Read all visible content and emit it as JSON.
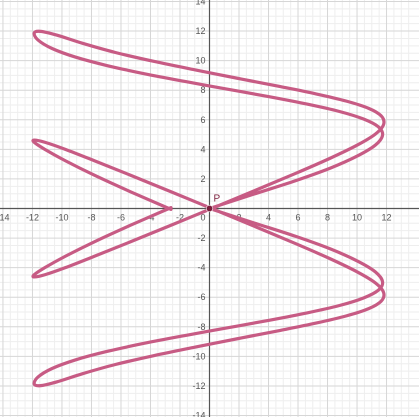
{
  "chart_data": {
    "type": "line",
    "title": "",
    "xlabel": "",
    "ylabel": "",
    "xlim": [
      -14.2,
      14.2
    ],
    "ylim": [
      -14.1,
      14.1
    ],
    "grid": true,
    "x_ticks": [
      "-14",
      "-12",
      "-10",
      "-8",
      "-6",
      "-4",
      "-2",
      "2",
      "4",
      "6",
      "8",
      "10",
      "12"
    ],
    "y_ticks": [
      "14",
      "12",
      "10",
      "8",
      "6",
      "4",
      "2",
      "-2",
      "-4",
      "-6",
      "-8",
      "-10",
      "-12",
      "-14"
    ],
    "origin_label": "0",
    "series": [
      {
        "color": "#c75b84",
        "points": [
          [
            0.0,
            0.0
          ],
          [
            3.0,
            0.97
          ],
          [
            5.8,
            1.87
          ],
          [
            8.21,
            2.74
          ],
          [
            10.06,
            3.57
          ],
          [
            11.26,
            4.3
          ],
          [
            11.73,
            4.96
          ],
          [
            11.45,
            5.52
          ],
          [
            10.44,
            6.05
          ],
          [
            8.81,
            6.56
          ],
          [
            6.61,
            7.06
          ],
          [
            4.04,
            7.56
          ],
          [
            1.22,
            8.07
          ],
          [
            -1.66,
            8.59
          ],
          [
            -4.44,
            9.12
          ],
          [
            -6.96,
            9.67
          ],
          [
            -9.09,
            10.24
          ],
          [
            -10.67,
            10.82
          ],
          [
            -11.63,
            11.4
          ],
          [
            -11.88,
            11.87
          ],
          [
            -11.45,
            11.98
          ],
          [
            -10.33,
            11.72
          ],
          [
            -8.6,
            11.17
          ],
          [
            -6.38,
            10.55
          ],
          [
            -3.78,
            9.95
          ],
          [
            -0.96,
            9.37
          ],
          [
            1.93,
            8.8
          ],
          [
            4.71,
            8.26
          ],
          [
            7.22,
            7.75
          ],
          [
            9.28,
            7.26
          ],
          [
            10.79,
            6.77
          ],
          [
            11.65,
            6.25
          ],
          [
            11.8,
            5.68
          ],
          [
            11.24,
            5.03
          ],
          [
            10.0,
            4.28
          ],
          [
            8.16,
            3.39
          ],
          [
            5.83,
            2.37
          ],
          [
            3.16,
            1.25
          ],
          [
            0.29,
            0.06
          ],
          [
            -2.61,
            -1.13
          ],
          [
            -5.35,
            -2.25
          ],
          [
            -7.8,
            -3.23
          ],
          [
            -9.77,
            -4.0
          ],
          [
            -11.16,
            -4.48
          ],
          [
            -11.87,
            -4.63
          ],
          [
            -11.88,
            -4.48
          ],
          [
            -11.16,
            -4.0
          ],
          [
            -9.77,
            -3.23
          ],
          [
            -7.8,
            -2.25
          ],
          [
            -5.35,
            -1.13
          ],
          [
            -2.61,
            0.06
          ]
        ]
      }
    ],
    "point": {
      "label": "P",
      "x": 0,
      "y": 0,
      "color": "#7a1c3a"
    }
  }
}
